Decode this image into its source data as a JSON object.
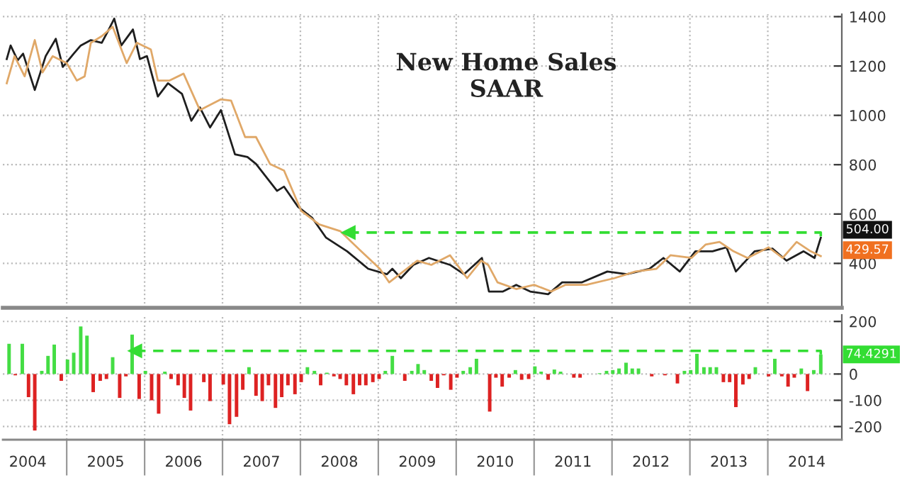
{
  "chart_data": [
    {
      "type": "line",
      "title": "New Home Sales\nSAAR",
      "xlim": [
        2004.18,
        2014.95
      ],
      "ylim": [
        220,
        1410
      ],
      "xticks": [
        {
          "value": 2005,
          "label": null
        },
        {
          "value": 2006,
          "label": null
        },
        {
          "value": 2007,
          "label": null
        },
        {
          "value": 2008,
          "label": null
        },
        {
          "value": 2009,
          "label": null
        },
        {
          "value": 2010,
          "label": null
        },
        {
          "value": 2011,
          "label": null
        },
        {
          "value": 2012,
          "label": null
        },
        {
          "value": 2013,
          "label": null
        },
        {
          "value": 2014,
          "label": null
        }
      ],
      "yticks": [
        400,
        600,
        800,
        1000,
        1200,
        1400
      ],
      "tick_labels": "y",
      "grid": true,
      "series": [
        {
          "color": "#1e1e1e",
          "x": [
            2004.23,
            2004.28,
            2004.37,
            2004.44,
            2004.59,
            2004.73,
            2004.86,
            2004.95,
            2005.09,
            2005.18,
            2005.31,
            2005.45,
            2005.54,
            2005.61,
            2005.7,
            2005.85,
            2005.94,
            2006.03,
            2006.17,
            2006.3,
            2006.48,
            2006.6,
            2006.71,
            2006.84,
            2006.98,
            2007.16,
            2007.32,
            2007.43,
            2007.7,
            2007.79,
            2007.97,
            2008.15,
            2008.33,
            2008.6,
            2008.87,
            2009.11,
            2009.18,
            2009.29,
            2009.45,
            2009.65,
            2009.92,
            2010.1,
            2010.33,
            2010.42,
            2010.6,
            2010.77,
            2010.95,
            2011.18,
            2011.36,
            2011.61,
            2011.94,
            2012.19,
            2012.48,
            2012.66,
            2012.87,
            2013.07,
            2013.29,
            2013.47,
            2013.59,
            2013.83,
            2014.06,
            2014.24,
            2014.46,
            2014.6,
            2014.68
          ],
          "values": [
            1228,
            1283,
            1223,
            1250,
            1103,
            1240,
            1310,
            1196,
            1250,
            1283,
            1305,
            1294,
            1348,
            1392,
            1283,
            1348,
            1228,
            1240,
            1076,
            1130,
            1087,
            978,
            1032,
            951,
            1021,
            842,
            831,
            803,
            694,
            711,
            629,
            585,
            504,
            449,
            378,
            356,
            378,
            340,
            394,
            422,
            394,
            356,
            422,
            286,
            286,
            313,
            286,
            275,
            323,
            323,
            367,
            356,
            378,
            422,
            367,
            449,
            449,
            465,
            367,
            449,
            460,
            411,
            449,
            422,
            504
          ]
        },
        {
          "color": "#e0a868",
          "x": [
            2004.23,
            2004.33,
            2004.46,
            2004.59,
            2004.69,
            2004.82,
            2005.0,
            2005.13,
            2005.23,
            2005.31,
            2005.45,
            2005.59,
            2005.77,
            2005.9,
            2006.08,
            2006.17,
            2006.32,
            2006.5,
            2006.71,
            2006.98,
            2007.11,
            2007.29,
            2007.43,
            2007.61,
            2007.79,
            2008.01,
            2008.24,
            2008.51,
            2008.78,
            2009.02,
            2009.14,
            2009.32,
            2009.5,
            2009.68,
            2009.92,
            2010.14,
            2010.32,
            2010.41,
            2010.53,
            2010.77,
            2011.0,
            2011.22,
            2011.4,
            2011.67,
            2012.03,
            2012.3,
            2012.57,
            2012.75,
            2013.02,
            2013.2,
            2013.38,
            2013.56,
            2013.74,
            2014.01,
            2014.19,
            2014.37,
            2014.55,
            2014.68
          ],
          "values": [
            1130,
            1240,
            1158,
            1305,
            1174,
            1240,
            1212,
            1141,
            1158,
            1294,
            1321,
            1359,
            1212,
            1294,
            1267,
            1141,
            1141,
            1169,
            1021,
            1065,
            1060,
            912,
            912,
            803,
            776,
            613,
            558,
            531,
            449,
            378,
            323,
            367,
            411,
            394,
            433,
            340,
            411,
            394,
            323,
            296,
            313,
            286,
            313,
            313,
            340,
            367,
            378,
            433,
            422,
            476,
            487,
            449,
            422,
            465,
            422,
            487,
            449,
            429.57
          ]
        },
        {
          "color": "#33dd33",
          "line_style": "dashed",
          "x": [
            2008.62,
            2014.68,
            2014.68
          ],
          "values": [
            525,
            525,
            504
          ]
        }
      ],
      "annotations": [
        "504.00",
        "429.57"
      ]
    },
    {
      "type": "bar",
      "xlim": [
        2004.18,
        2014.95
      ],
      "ylim": [
        -250,
        225
      ],
      "xticks": [
        {
          "value": 2004.5,
          "label": "2004"
        },
        {
          "value": 2005,
          "label": null
        },
        {
          "value": 2005.5,
          "label": "2005"
        },
        {
          "value": 2006,
          "label": null
        },
        {
          "value": 2006.5,
          "label": "2006"
        },
        {
          "value": 2007,
          "label": null
        },
        {
          "value": 2007.5,
          "label": "2007"
        },
        {
          "value": 2008,
          "label": null
        },
        {
          "value": 2008.5,
          "label": "2008"
        },
        {
          "value": 2009,
          "label": null
        },
        {
          "value": 2009.5,
          "label": "2009"
        },
        {
          "value": 2010,
          "label": null
        },
        {
          "value": 2010.5,
          "label": "2010"
        },
        {
          "value": 2011,
          "label": null
        },
        {
          "value": 2011.5,
          "label": "2011"
        },
        {
          "value": 2012,
          "label": null
        },
        {
          "value": 2012.5,
          "label": "2012"
        },
        {
          "value": 2013,
          "label": null
        },
        {
          "value": 2013.5,
          "label": "2013"
        },
        {
          "value": 2014,
          "label": null
        },
        {
          "value": 2014.5,
          "label": "2014"
        }
      ],
      "yticks": [
        -200,
        -100,
        0,
        200
      ],
      "grid": true,
      "series": [
        {
          "x": [
            2004.26,
            2004.34,
            2004.43,
            2004.51,
            2004.59,
            2004.68,
            2004.76,
            2004.84,
            2004.93,
            2005.01,
            2005.09,
            2005.18,
            2005.26,
            2005.34,
            2005.43,
            2005.51,
            2005.59,
            2005.68,
            2005.76,
            2005.84,
            2005.93,
            2006.01,
            2006.09,
            2006.18,
            2006.26,
            2006.34,
            2006.43,
            2006.51,
            2006.59,
            2006.68,
            2006.76,
            2006.84,
            2006.93,
            2007.01,
            2007.09,
            2007.18,
            2007.26,
            2007.34,
            2007.43,
            2007.51,
            2007.59,
            2007.68,
            2007.76,
            2007.84,
            2007.93,
            2008.01,
            2008.09,
            2008.18,
            2008.26,
            2008.34,
            2008.43,
            2008.51,
            2008.59,
            2008.68,
            2008.76,
            2008.84,
            2008.93,
            2009.01,
            2009.09,
            2009.18,
            2009.26,
            2009.34,
            2009.43,
            2009.51,
            2009.59,
            2009.68,
            2009.76,
            2009.84,
            2009.93,
            2010.01,
            2010.09,
            2010.18,
            2010.26,
            2010.34,
            2010.43,
            2010.51,
            2010.59,
            2010.68,
            2010.76,
            2010.84,
            2010.93,
            2011.01,
            2011.09,
            2011.18,
            2011.26,
            2011.34,
            2011.43,
            2011.51,
            2011.59,
            2011.68,
            2011.76,
            2011.84,
            2011.93,
            2012.01,
            2012.09,
            2012.18,
            2012.26,
            2012.34,
            2012.43,
            2012.51,
            2012.59,
            2012.68,
            2012.76,
            2012.84,
            2012.93,
            2013.01,
            2013.09,
            2013.18,
            2013.26,
            2013.34,
            2013.43,
            2013.51,
            2013.59,
            2013.68,
            2013.76,
            2013.84,
            2013.93,
            2014.01,
            2014.09,
            2014.18,
            2014.26,
            2014.34,
            2014.43,
            2014.51,
            2014.59,
            2014.68
          ],
          "values": [
            115,
            -5,
            115,
            -88,
            -215,
            12,
            69,
            112,
            -26,
            55,
            81,
            181,
            146,
            -69,
            -26,
            -19,
            64,
            -91,
            -9,
            150,
            -95,
            12,
            -100,
            -151,
            9,
            -19,
            -43,
            -91,
            -139,
            0,
            -31,
            -103,
            0,
            -40,
            -191,
            -163,
            -60,
            26,
            -83,
            -103,
            -43,
            -129,
            -88,
            -43,
            -77,
            -31,
            26,
            12,
            -43,
            5,
            -9,
            -19,
            -43,
            -77,
            -43,
            -43,
            -31,
            -19,
            12,
            69,
            0,
            -26,
            12,
            38,
            15,
            -26,
            -53,
            -5,
            -60,
            -14,
            12,
            26,
            58,
            0,
            -143,
            -14,
            -48,
            -14,
            15,
            -22,
            -19,
            29,
            9,
            -22,
            17,
            9,
            0,
            -14,
            -14,
            0,
            0,
            3,
            12,
            15,
            21,
            43,
            21,
            21,
            0,
            -9,
            0,
            -5,
            0,
            -36,
            12,
            15,
            77,
            26,
            26,
            26,
            -31,
            -31,
            -126,
            -40,
            -19,
            26,
            0,
            -9,
            58,
            -9,
            -48,
            -14,
            21,
            -65,
            15,
            74.4291
          ],
          "colors": [
            "#44dd44",
            "#dd2222",
            "#44dd44",
            "#dd2222",
            "#dd2222",
            "#44dd44",
            "#44dd44",
            "#44dd44",
            "#dd2222",
            "#44dd44",
            "#44dd44",
            "#44dd44",
            "#44dd44",
            "#dd2222",
            "#dd2222",
            "#dd2222",
            "#44dd44",
            "#dd2222",
            "#dd2222",
            "#44dd44",
            "#dd2222",
            "#44dd44",
            "#dd2222",
            "#dd2222",
            "#44dd44",
            "#dd2222",
            "#dd2222",
            "#dd2222",
            "#dd2222",
            "#44dd44",
            "#dd2222",
            "#dd2222",
            "#44dd44",
            "#dd2222",
            "#dd2222",
            "#dd2222",
            "#dd2222",
            "#44dd44",
            "#dd2222",
            "#dd2222",
            "#dd2222",
            "#dd2222",
            "#dd2222",
            "#dd2222",
            "#dd2222",
            "#dd2222",
            "#44dd44",
            "#44dd44",
            "#dd2222",
            "#44dd44",
            "#dd2222",
            "#dd2222",
            "#dd2222",
            "#dd2222",
            "#dd2222",
            "#dd2222",
            "#dd2222",
            "#dd2222",
            "#44dd44",
            "#44dd44",
            "#44dd44",
            "#dd2222",
            "#44dd44",
            "#44dd44",
            "#44dd44",
            "#dd2222",
            "#dd2222",
            "#dd2222",
            "#dd2222",
            "#dd2222",
            "#44dd44",
            "#44dd44",
            "#44dd44",
            "#44dd44",
            "#dd2222",
            "#dd2222",
            "#dd2222",
            "#dd2222",
            "#44dd44",
            "#dd2222",
            "#dd2222",
            "#44dd44",
            "#44dd44",
            "#dd2222",
            "#44dd44",
            "#44dd44",
            "#44dd44",
            "#dd2222",
            "#dd2222",
            "#44dd44",
            "#44dd44",
            "#44dd44",
            "#44dd44",
            "#44dd44",
            "#44dd44",
            "#44dd44",
            "#44dd44",
            "#44dd44",
            "#44dd44",
            "#dd2222",
            "#44dd44",
            "#dd2222",
            "#44dd44",
            "#dd2222",
            "#44dd44",
            "#44dd44",
            "#44dd44",
            "#44dd44",
            "#44dd44",
            "#44dd44",
            "#dd2222",
            "#dd2222",
            "#dd2222",
            "#dd2222",
            "#dd2222",
            "#44dd44",
            "#44dd44",
            "#dd2222",
            "#44dd44",
            "#dd2222",
            "#dd2222",
            "#dd2222",
            "#44dd44",
            "#dd2222",
            "#44dd44",
            "#44dd44"
          ]
        },
        {
          "type": "line",
          "color": "#33dd33",
          "line_style": "dashed",
          "x": [
            2005.88,
            2014.68,
            2014.68
          ],
          "values": [
            88,
            88,
            74.4291
          ]
        }
      ],
      "annotations": [
        "74.4291"
      ]
    }
  ]
}
